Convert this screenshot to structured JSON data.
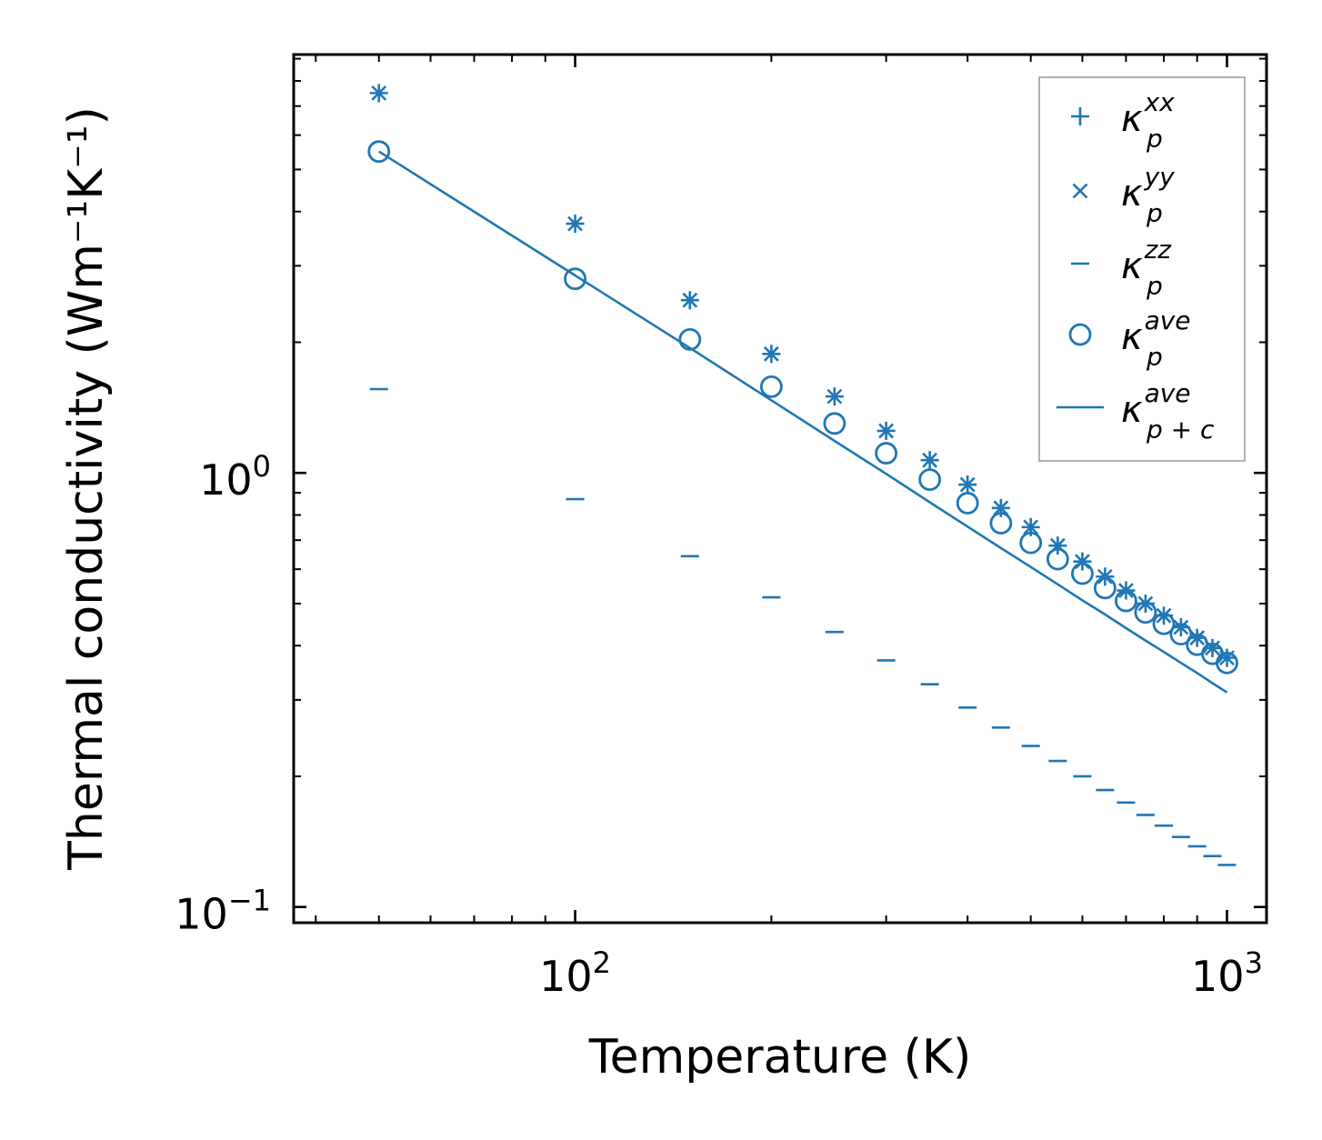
{
  "chart_data": {
    "type": "scatter",
    "xscale": "log",
    "yscale": "log",
    "xlabel": "Temperature (K)",
    "ylabel": "Thermal conductivity (Wm⁻¹K⁻¹)",
    "xlim": [
      37,
      1150
    ],
    "ylim": [
      0.092,
      9.2
    ],
    "x_ticks": [
      {
        "value": 100,
        "base": "10",
        "exp": "2"
      },
      {
        "value": 1000,
        "base": "10",
        "exp": "3"
      }
    ],
    "y_ticks": [
      {
        "value": 0.1,
        "base": "10",
        "exp": "−1"
      },
      {
        "value": 1,
        "base": "10",
        "exp": "0"
      }
    ],
    "x": [
      50,
      100,
      150,
      200,
      250,
      300,
      350,
      400,
      450,
      500,
      550,
      600,
      650,
      700,
      750,
      800,
      850,
      900,
      950,
      1000
    ],
    "series": [
      {
        "name": "xx",
        "marker": "plus",
        "color": "#1f77b4",
        "values": [
          7.5,
          3.75,
          2.5,
          1.88,
          1.5,
          1.25,
          1.07,
          0.94,
          0.83,
          0.75,
          0.68,
          0.625,
          0.577,
          0.536,
          0.5,
          0.469,
          0.441,
          0.417,
          0.395,
          0.375
        ]
      },
      {
        "name": "yy",
        "marker": "x",
        "color": "#1f77b4",
        "values": [
          7.5,
          3.75,
          2.5,
          1.88,
          1.5,
          1.25,
          1.07,
          0.94,
          0.83,
          0.75,
          0.68,
          0.625,
          0.577,
          0.536,
          0.5,
          0.469,
          0.441,
          0.417,
          0.395,
          0.375
        ]
      },
      {
        "name": "zz",
        "marker": "hline",
        "color": "#1f77b4",
        "values": [
          1.56,
          0.87,
          0.643,
          0.517,
          0.43,
          0.37,
          0.326,
          0.288,
          0.259,
          0.235,
          0.217,
          0.2,
          0.186,
          0.174,
          0.163,
          0.154,
          0.145,
          0.138,
          0.131,
          0.125
        ]
      },
      {
        "name": "ave",
        "marker": "circle",
        "color": "#1f77b4",
        "values": [
          5.5,
          2.8,
          2.03,
          1.58,
          1.3,
          1.11,
          0.965,
          0.852,
          0.766,
          0.69,
          0.633,
          0.586,
          0.543,
          0.507,
          0.477,
          0.449,
          0.425,
          0.402,
          0.383,
          0.365
        ]
      },
      {
        "name": "ave_pc",
        "marker": "line",
        "color": "#1f77b4",
        "values": [
          5.5,
          2.85,
          1.94,
          1.47,
          1.185,
          0.995,
          0.856,
          0.752,
          0.671,
          0.607,
          0.554,
          0.509,
          0.472,
          0.439,
          0.411,
          0.387,
          0.365,
          0.346,
          0.328,
          0.312
        ]
      }
    ],
    "legend": {
      "position": "top-right",
      "entries": [
        {
          "marker": "plus",
          "symbol": "κ",
          "sub": "p",
          "sup": "xx"
        },
        {
          "marker": "x",
          "symbol": "κ",
          "sub": "p",
          "sup": "yy"
        },
        {
          "marker": "hline",
          "symbol": "κ",
          "sub": "p",
          "sup": "zz"
        },
        {
          "marker": "circle",
          "symbol": "κ",
          "sub": "p",
          "sup": "ave"
        },
        {
          "marker": "line",
          "symbol": "κ",
          "sub": "p + c",
          "sup": "ave"
        }
      ]
    }
  }
}
